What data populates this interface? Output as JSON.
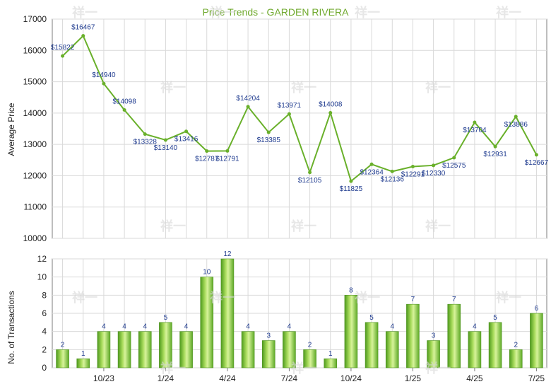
{
  "app": {
    "title": "Price Trends - GARDEN RIVERA"
  },
  "colors": {
    "title": "#6fa92c",
    "line": "#69b02a",
    "bar_light": "#b8e36f",
    "bar_dark": "#4e9a1d",
    "grid": "#d9d9d9",
    "axis": "#7c7c7c",
    "text": "#222222",
    "data_label": "#1f3b8f",
    "watermark": "#d8d8d8"
  },
  "watermark": {
    "text": "祥一"
  },
  "chart_data": [
    {
      "type": "line",
      "title": "Price Trends - GARDEN RIVERA",
      "xlabel": "",
      "ylabel": "Average Price",
      "ylim": [
        10000,
        17000
      ],
      "yticks": [
        "10000",
        "11000",
        "12000",
        "13000",
        "14000",
        "15000",
        "16000",
        "17000"
      ],
      "grid": true,
      "series": [
        {
          "name": "",
          "values": [
            15822,
            16467,
            14940,
            14098,
            13328,
            13140,
            13416,
            12787,
            12791,
            14204,
            13385,
            13971,
            12105,
            14008,
            11825,
            12364,
            12136,
            12291,
            12330,
            12575,
            13704,
            12931,
            13886,
            12667
          ],
          "labels": [
            "$15822",
            "$16467",
            "$14940",
            "$14098",
            "$13328",
            "$13140",
            "$13416",
            "$12787",
            "$12791",
            "$14204",
            "$13385",
            "$13971",
            "$12105",
            "$14008",
            "$11825",
            "$12364",
            "$12136",
            "$12291",
            "$12330",
            "$12575",
            "$13704",
            "$12931",
            "$13886",
            "$12667"
          ]
        }
      ]
    },
    {
      "type": "bar",
      "xlabel": "",
      "ylabel": "No. of Transactions",
      "ylim": [
        0,
        12
      ],
      "yticks": [
        "0",
        "2",
        "4",
        "6",
        "8",
        "10",
        "12"
      ],
      "grid": true,
      "x_tick_labels": [
        {
          "index": 2,
          "label": "10/23"
        },
        {
          "index": 5,
          "label": "1/24"
        },
        {
          "index": 8,
          "label": "4/24"
        },
        {
          "index": 11,
          "label": "7/24"
        },
        {
          "index": 14,
          "label": "10/24"
        },
        {
          "index": 17,
          "label": "1/25"
        },
        {
          "index": 20,
          "label": "4/25"
        },
        {
          "index": 23,
          "label": "7/25"
        }
      ],
      "values": [
        2,
        1,
        4,
        4,
        4,
        5,
        4,
        10,
        12,
        4,
        3,
        4,
        2,
        1,
        8,
        5,
        4,
        7,
        3,
        7,
        4,
        5,
        2,
        6
      ],
      "labels": [
        "2",
        "1",
        "4",
        "4",
        "4",
        "5",
        "4",
        "10",
        "12",
        "4",
        "3",
        "4",
        "2",
        "1",
        "8",
        "5",
        "4",
        "7",
        "3",
        "7",
        "4",
        "5",
        "2",
        "6"
      ]
    }
  ]
}
